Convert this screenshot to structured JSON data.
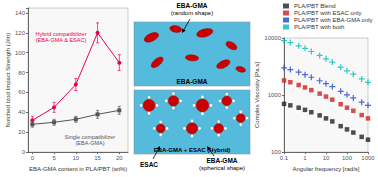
{
  "chart_data": [
    {
      "type": "line",
      "x": [
        0,
        5,
        10,
        15,
        20
      ],
      "xlabel": "EBA-GMA content in PLA/PBT (wt%)",
      "ylabel": "Notched Izod Impact Strength (J/m)",
      "xlim": [
        -1,
        22
      ],
      "xticks": [
        0,
        5,
        10,
        15,
        20
      ],
      "ylim": [
        0,
        145
      ],
      "yticks": [
        0,
        20,
        40,
        60,
        80,
        100,
        120,
        140
      ],
      "grid": false,
      "series": [
        {
          "name": "Hybrid compatibilizer\n(EBA-GMA & ESAC)",
          "color": "#e8004a",
          "marker": "circle",
          "values": [
            32,
            45,
            68,
            120,
            90
          ],
          "errors": [
            4,
            5,
            6,
            10,
            8
          ]
        },
        {
          "name": "Single compatibilizer\n(EBA-GMA)",
          "color": "#555555",
          "marker": "square",
          "values": [
            28,
            30,
            33,
            38,
            42
          ],
          "errors": [
            3,
            3,
            3,
            4,
            4
          ]
        }
      ]
    },
    {
      "type": "scatter",
      "log": true,
      "x": [
        0.1,
        0.2,
        0.5,
        1,
        2,
        5,
        10,
        20,
        50,
        100,
        200,
        500,
        1000
      ],
      "xlabel": "Angular frequency [rad/s]",
      "ylabel": "Complex Viscosity [Pa.s]",
      "xlim": [
        0.1,
        1000
      ],
      "xticks": [
        0.1,
        1,
        10,
        100,
        1000
      ],
      "ylim": [
        100,
        10000
      ],
      "yticks": [
        100,
        1000,
        10000
      ],
      "grid": false,
      "legend": "upper right",
      "series": [
        {
          "name": "PLA/PBT Blend",
          "color": "#222222",
          "marker": "square",
          "values": [
            700,
            660,
            600,
            550,
            500,
            440,
            390,
            345,
            285,
            250,
            220,
            185,
            165
          ]
        },
        {
          "name": "PLA/PBT with ESAC only",
          "color": "#cc2222",
          "marker": "square",
          "values": [
            1800,
            1680,
            1500,
            1360,
            1220,
            1060,
            940,
            830,
            690,
            600,
            530,
            445,
            390
          ]
        },
        {
          "name": "PLA/PBT with EBA-GMA only",
          "color": "#2244cc",
          "marker": "plus",
          "values": [
            3000,
            2800,
            2520,
            2280,
            2050,
            1780,
            1580,
            1400,
            1160,
            1010,
            890,
            750,
            660
          ]
        },
        {
          "name": "PLA/PBT with both",
          "color": "#00bbbb",
          "marker": "plus",
          "values": [
            9000,
            8300,
            7300,
            6600,
            5800,
            4950,
            4320,
            3780,
            3080,
            2660,
            2320,
            1920,
            1670
          ]
        }
      ]
    },
    {
      "type": "diagram",
      "colors": [
        "#55BBDD",
        "#CC0000"
      ],
      "annotations": [
        "EBA-GMA\n(random shape)",
        "EBA-GMA",
        "EBA-GMA + ESAC (Hybrid)",
        "ESAC",
        "EBA-GMA\n(spherical shape)"
      ]
    }
  ]
}
